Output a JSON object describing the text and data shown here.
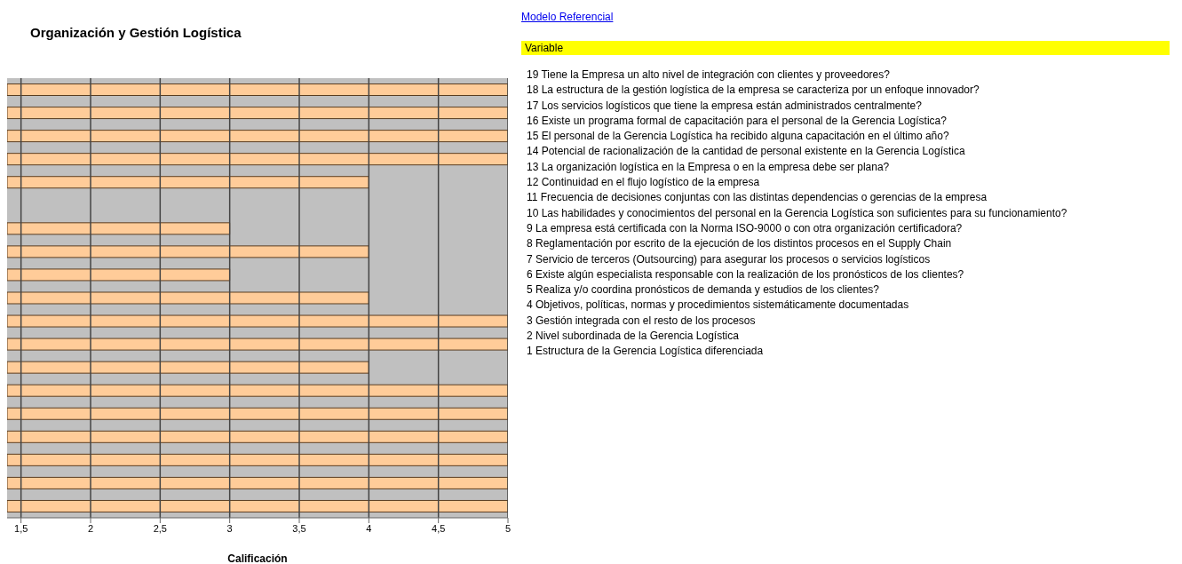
{
  "chart_data": {
    "type": "bar",
    "orientation": "horizontal",
    "title": "Organización y Gestión Logística",
    "xlabel": "Calificación",
    "categories": [
      null,
      null,
      null,
      null,
      null,
      null,
      null,
      null,
      null,
      null,
      null,
      null,
      null,
      null,
      null,
      null,
      null,
      null,
      null
    ],
    "values": [
      5,
      5,
      5,
      5,
      4,
      null,
      3,
      4,
      3,
      4,
      5,
      5,
      4,
      5,
      5,
      5,
      5,
      5,
      5
    ],
    "color": "#ffcc99",
    "xlim": [
      1.4,
      5
    ],
    "xticks": [
      {
        "value": 1.5,
        "label": "1,5"
      },
      2,
      {
        "value": 2.5,
        "label": "2,5"
      },
      3,
      {
        "value": 3.5,
        "label": "3,5"
      },
      4,
      {
        "value": 4.5,
        "label": "4,5"
      },
      5
    ],
    "grid": "x",
    "annotations": [
      "Modelo Referencial",
      "Variable",
      "19  Tiene la Empresa un alto nivel de integración con clientes y proveedores?",
      "18  La estructura de la gestión logística de la empresa se caracteriza por un enfoque innovador?",
      "17  Los servicios logísticos que tiene la empresa están administrados centralmente?",
      "16  Existe un programa formal de capacitación para el personal de la Gerencia Logística?",
      "15  El personal de la Gerencia Logística ha recibido alguna capacitación en el último año?",
      "14  Potencial de racionalización de la cantidad de personal existente en la Gerencia Logística",
      "13  La organización logística en la Empresa o en la empresa debe ser plana?",
      "12  Continuidad en el flujo logístico de la empresa",
      "11  Frecuencia de decisiones conjuntas con las distintas dependencias o gerencias de la empresa",
      "10  Las habilidades y conocimientos del personal en la Gerencia Logística son suficientes para su funcionamiento?",
      "9  La empresa está certificada con la Norma ISO-9000 o con otra organización certificadora?",
      "8  Reglamentación por escrito de la ejecución de los distintos procesos en el Supply Chain",
      "7  Servicio de terceros (Outsourcing) para asegurar los procesos o servicios logísticos",
      "6  Existe algún especialista responsable con la realización de los pronósticos de los clientes?",
      "5  Realiza y/o coordina pronósticos de demanda y estudios de los clientes?",
      "4  Objetivos, políticas, normas y procedimientos sistemáticamente documentadas",
      "3  Gestión integrada con el resto de los procesos",
      "2  Nivel subordinada de la Gerencia Logística",
      "1  Estructura de la Gerencia Logística diferenciada"
    ]
  }
}
